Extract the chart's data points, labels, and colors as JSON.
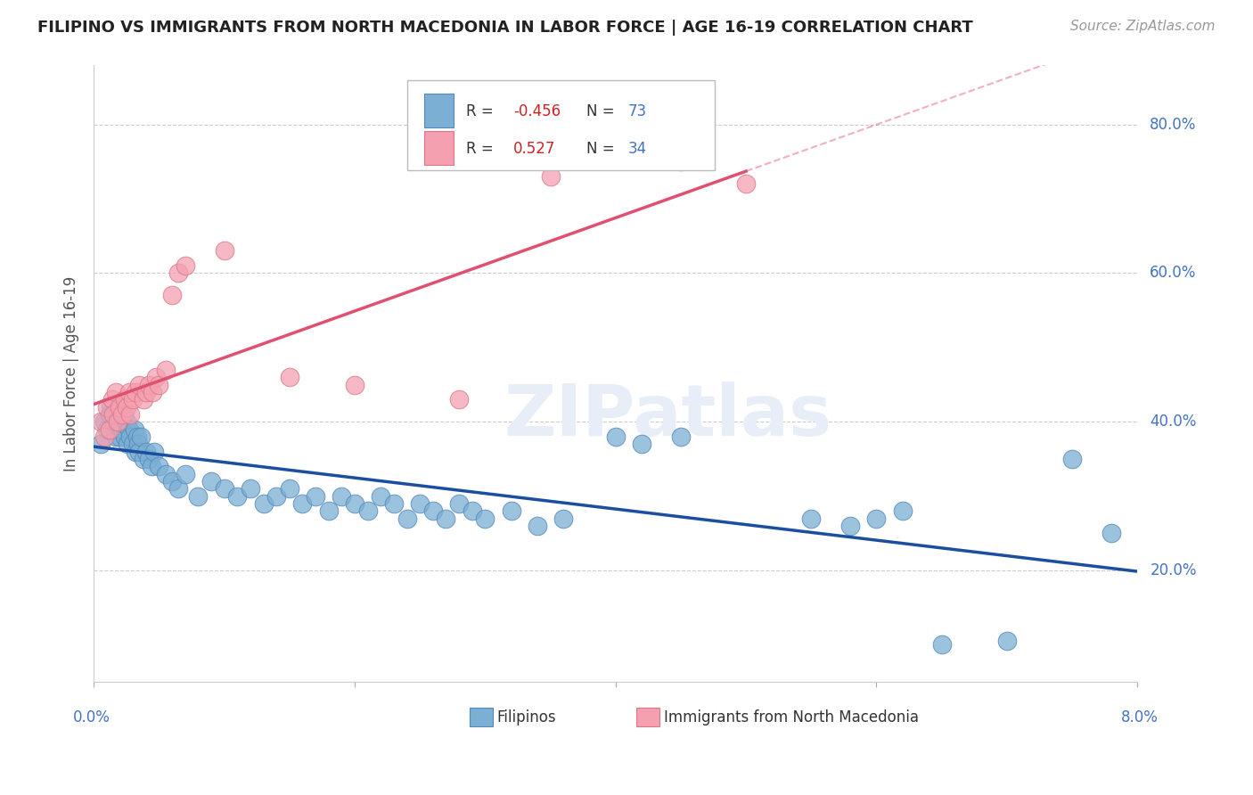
{
  "title": "FILIPINO VS IMMIGRANTS FROM NORTH MACEDONIA IN LABOR FORCE | AGE 16-19 CORRELATION CHART",
  "source": "Source: ZipAtlas.com",
  "ylabel": "In Labor Force | Age 16-19",
  "xlim": [
    0.0,
    8.0
  ],
  "ylim": [
    5.0,
    88.0
  ],
  "yticks": [
    20.0,
    40.0,
    60.0,
    80.0
  ],
  "grid_color": "#cccccc",
  "background_color": "#ffffff",
  "blue_color": "#7bafd4",
  "blue_edge_color": "#5588bb",
  "blue_line_color": "#1a4fa0",
  "pink_color": "#f4a0b0",
  "pink_edge_color": "#dd7788",
  "pink_line_color": "#e05070",
  "blue_R": -0.456,
  "blue_N": 73,
  "pink_R": 0.527,
  "pink_N": 34,
  "blue_scatter_x": [
    0.05,
    0.08,
    0.1,
    0.12,
    0.13,
    0.15,
    0.16,
    0.17,
    0.18,
    0.19,
    0.2,
    0.2,
    0.22,
    0.23,
    0.24,
    0.25,
    0.26,
    0.27,
    0.28,
    0.3,
    0.31,
    0.32,
    0.33,
    0.34,
    0.35,
    0.36,
    0.38,
    0.4,
    0.42,
    0.44,
    0.46,
    0.5,
    0.55,
    0.6,
    0.65,
    0.7,
    0.8,
    0.9,
    1.0,
    1.1,
    1.2,
    1.3,
    1.4,
    1.5,
    1.6,
    1.7,
    1.8,
    1.9,
    2.0,
    2.1,
    2.2,
    2.3,
    2.4,
    2.5,
    2.6,
    2.7,
    2.8,
    2.9,
    3.0,
    3.2,
    3.4,
    3.6,
    4.0,
    4.2,
    4.5,
    5.5,
    5.8,
    6.0,
    6.2,
    6.5,
    7.0,
    7.5,
    7.8
  ],
  "blue_scatter_y": [
    37.0,
    40.0,
    39.0,
    41.0,
    42.0,
    39.0,
    41.0,
    38.0,
    40.0,
    42.0,
    38.0,
    40.0,
    39.0,
    41.0,
    38.0,
    40.0,
    37.0,
    39.0,
    38.0,
    37.0,
    39.0,
    36.0,
    38.0,
    37.0,
    36.0,
    38.0,
    35.0,
    36.0,
    35.0,
    34.0,
    36.0,
    34.0,
    33.0,
    32.0,
    31.0,
    33.0,
    30.0,
    32.0,
    31.0,
    30.0,
    31.0,
    29.0,
    30.0,
    31.0,
    29.0,
    30.0,
    28.0,
    30.0,
    29.0,
    28.0,
    30.0,
    29.0,
    27.0,
    29.0,
    28.0,
    27.0,
    29.0,
    28.0,
    27.0,
    28.0,
    26.0,
    27.0,
    38.0,
    37.0,
    38.0,
    27.0,
    26.0,
    27.0,
    28.0,
    10.0,
    10.5,
    35.0,
    25.0
  ],
  "pink_scatter_x": [
    0.05,
    0.08,
    0.1,
    0.12,
    0.14,
    0.15,
    0.17,
    0.18,
    0.2,
    0.22,
    0.24,
    0.25,
    0.27,
    0.28,
    0.3,
    0.32,
    0.35,
    0.38,
    0.4,
    0.42,
    0.45,
    0.48,
    0.5,
    0.55,
    0.6,
    0.65,
    0.7,
    1.0,
    1.5,
    2.0,
    2.8,
    3.5,
    4.5,
    5.0
  ],
  "pink_scatter_y": [
    40.0,
    38.0,
    42.0,
    39.0,
    43.0,
    41.0,
    44.0,
    40.0,
    42.0,
    41.0,
    43.0,
    42.0,
    44.0,
    41.0,
    43.0,
    44.0,
    45.0,
    43.0,
    44.0,
    45.0,
    44.0,
    46.0,
    45.0,
    47.0,
    57.0,
    60.0,
    61.0,
    63.0,
    46.0,
    45.0,
    43.0,
    73.0,
    75.0,
    72.0
  ],
  "legend_labels": [
    "Filipinos",
    "Immigrants from North Macedonia"
  ]
}
